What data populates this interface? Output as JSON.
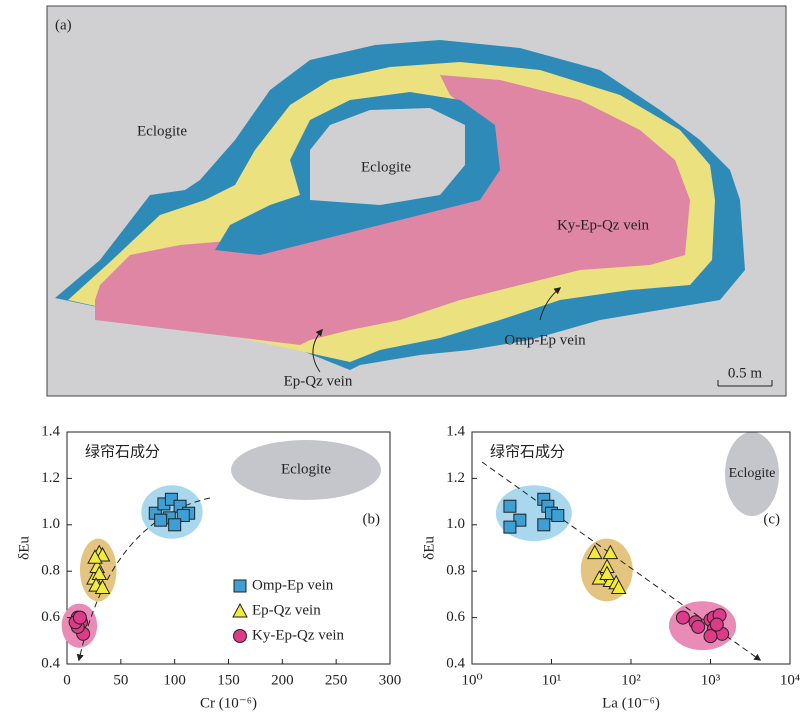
{
  "diagram": {
    "panel_label": "(a)",
    "labels": [
      "Eclogite",
      "Eclogite",
      "Ky-Ep-Qz vein",
      "Omp-Ep vein",
      "Ep-Qz vein"
    ],
    "scale_bar": "0.5 m"
  },
  "chart_data": [
    {
      "type": "scatter",
      "panel_label": "(b)",
      "annotation": "绿帘石成分",
      "field_label": "Eclogite",
      "x_label": "Cr (10⁻⁶)",
      "y_label": "δEu",
      "xlim": [
        0,
        300
      ],
      "xticks": [
        0,
        50,
        100,
        150,
        200,
        250,
        300
      ],
      "ylim": [
        0.4,
        1.4
      ],
      "yticks": [
        0.4,
        0.6,
        0.8,
        {
          "value": 1,
          "label": "1.0"
        },
        1.2,
        1.4
      ],
      "legend": "lower right",
      "series": [
        {
          "name": "Omp-Ep vein",
          "color": "#3d9fd3",
          "field_color": "#a9d8ee",
          "marker": "square",
          "x": [
            82,
            90,
            97,
            105,
            113,
            108,
            95,
            87,
            100
          ],
          "values": [
            1.05,
            1.09,
            1.11,
            1.08,
            1.05,
            1.04,
            1.03,
            1.02,
            1.0
          ]
        },
        {
          "name": "Ep-Qz vein",
          "color": "#f4ea3a",
          "field_color": "#e3c57f",
          "marker": "triangle",
          "x": [
            25,
            28,
            30,
            33,
            30,
            27,
            33,
            26
          ],
          "values": [
            0.77,
            0.82,
            0.88,
            0.87,
            0.79,
            0.74,
            0.73,
            0.86
          ]
        },
        {
          "name": "Ky-Ep-Qz vein",
          "color": "#de3a8a",
          "field_color": "#e98bb6",
          "marker": "circle",
          "x": [
            10,
            13,
            15,
            10,
            8,
            12
          ],
          "values": [
            0.6,
            0.58,
            0.53,
            0.56,
            0.58,
            0.6
          ]
        }
      ]
    },
    {
      "type": "scatter",
      "panel_label": "(c)",
      "annotation": "绿帘石成分",
      "field_label": "Eclogite",
      "x_label": "La (10⁻⁶)",
      "y_label": "δEu",
      "xscale": "log",
      "xlim": [
        1,
        10000
      ],
      "xticks": [
        {
          "value": 1,
          "label": "10⁰"
        },
        {
          "value": 10,
          "label": "10¹"
        },
        {
          "value": 100,
          "label": "10²"
        },
        {
          "value": 1000,
          "label": "10³"
        },
        {
          "value": 10000,
          "label": "10⁴"
        }
      ],
      "ylim": [
        0.4,
        1.4
      ],
      "yticks": [
        0.4,
        0.6,
        0.8,
        {
          "value": 1,
          "label": "1.0"
        },
        1.2,
        1.4
      ],
      "series": [
        {
          "color": "#3d9fd3",
          "field_color": "#a9d8ee",
          "marker": "square",
          "x": [
            3,
            4,
            3,
            8,
            9,
            10,
            12,
            8
          ],
          "values": [
            1.08,
            1.02,
            0.99,
            1.11,
            1.08,
            1.05,
            1.04,
            1.0
          ]
        },
        {
          "color": "#f4ea3a",
          "field_color": "#e3c57f",
          "marker": "triangle",
          "x": [
            35,
            55,
            50,
            40,
            55,
            65,
            70,
            50
          ],
          "values": [
            0.88,
            0.88,
            0.82,
            0.77,
            0.76,
            0.75,
            0.73,
            0.79
          ]
        },
        {
          "color": "#de3a8a",
          "field_color": "#e98bb6",
          "marker": "circle",
          "x": [
            450,
            650,
            700,
            1000,
            1100,
            1300,
            1100,
            1400,
            1000,
            1200
          ],
          "values": [
            0.6,
            0.58,
            0.56,
            0.59,
            0.6,
            0.61,
            0.55,
            0.53,
            0.52,
            0.57
          ]
        }
      ]
    }
  ]
}
